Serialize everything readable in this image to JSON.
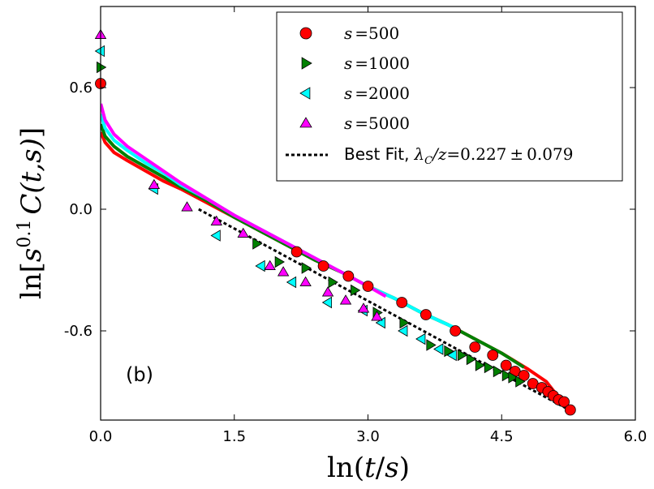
{
  "chart_data": {
    "type": "scatter",
    "xlabel": "ln(t/s)",
    "ylabel": "ln[s^0.1 C(t,s)]",
    "xlim": [
      0.0,
      6.0
    ],
    "ylim": [
      -1.04,
      1.0
    ],
    "xticks": [
      "0.0",
      "1.5",
      "3.0",
      "4.5",
      "6.0"
    ],
    "xtick_values": [
      0.0,
      1.5,
      3.0,
      4.5,
      6.0
    ],
    "yticks": [
      "0.6",
      "0.0",
      "-0.6"
    ],
    "ytick_values": [
      0.6,
      0.0,
      -0.6
    ],
    "panel_label": "(b)",
    "legend_location": "top-right",
    "series": [
      {
        "name": "s =500",
        "marker": "circle",
        "color": "#ff0000",
        "curve": [
          [
            0.002,
            0.38
          ],
          [
            0.05,
            0.33
          ],
          [
            0.15,
            0.28
          ],
          [
            0.3,
            0.24
          ],
          [
            0.5,
            0.19
          ],
          [
            0.7,
            0.14
          ],
          [
            0.9,
            0.1
          ],
          [
            1.2,
            0.03
          ],
          [
            1.5,
            -0.04
          ],
          [
            1.8,
            -0.11
          ],
          [
            2.1,
            -0.18
          ],
          [
            2.4,
            -0.25
          ],
          [
            2.7,
            -0.31
          ],
          [
            3.0,
            -0.38
          ],
          [
            3.3,
            -0.44
          ],
          [
            3.6,
            -0.51
          ],
          [
            3.9,
            -0.57
          ],
          [
            4.2,
            -0.64
          ],
          [
            4.5,
            -0.71
          ],
          [
            4.8,
            -0.79
          ],
          [
            5.0,
            -0.85
          ],
          [
            5.25,
            -0.99
          ]
        ],
        "points": [
          [
            0.0,
            0.62
          ],
          [
            2.2,
            -0.21
          ],
          [
            2.5,
            -0.28
          ],
          [
            2.78,
            -0.33
          ],
          [
            3.0,
            -0.38
          ],
          [
            3.38,
            -0.46
          ],
          [
            3.65,
            -0.52
          ],
          [
            3.98,
            -0.6
          ],
          [
            4.2,
            -0.68
          ],
          [
            4.4,
            -0.72
          ],
          [
            4.55,
            -0.77
          ],
          [
            4.65,
            -0.8
          ],
          [
            4.75,
            -0.82
          ],
          [
            4.85,
            -0.86
          ],
          [
            4.95,
            -0.88
          ],
          [
            5.02,
            -0.9
          ],
          [
            5.08,
            -0.92
          ],
          [
            5.14,
            -0.94
          ],
          [
            5.2,
            -0.95
          ],
          [
            5.27,
            -0.99
          ]
        ]
      },
      {
        "name": "s =1000",
        "marker": "triangle-right",
        "color": "#008000",
        "curve": [
          [
            0.002,
            0.42
          ],
          [
            0.05,
            0.36
          ],
          [
            0.15,
            0.31
          ],
          [
            0.3,
            0.26
          ],
          [
            0.5,
            0.21
          ],
          [
            0.7,
            0.16
          ],
          [
            0.9,
            0.11
          ],
          [
            1.2,
            0.04
          ],
          [
            1.5,
            -0.04
          ],
          [
            1.8,
            -0.11
          ],
          [
            2.1,
            -0.18
          ],
          [
            2.4,
            -0.25
          ],
          [
            2.7,
            -0.31
          ],
          [
            3.0,
            -0.38
          ],
          [
            3.3,
            -0.44
          ],
          [
            3.6,
            -0.51
          ],
          [
            3.9,
            -0.57
          ],
          [
            4.2,
            -0.64
          ],
          [
            4.5,
            -0.71
          ],
          [
            4.75,
            -0.78
          ]
        ],
        "points": [
          [
            0.0,
            0.7
          ],
          [
            1.75,
            -0.17
          ],
          [
            2.0,
            -0.26
          ],
          [
            2.3,
            -0.29
          ],
          [
            2.6,
            -0.36
          ],
          [
            2.85,
            -0.4
          ],
          [
            3.1,
            -0.51
          ],
          [
            3.4,
            -0.56
          ],
          [
            3.7,
            -0.67
          ],
          [
            3.9,
            -0.7
          ],
          [
            4.05,
            -0.72
          ],
          [
            4.15,
            -0.74
          ],
          [
            4.25,
            -0.77
          ],
          [
            4.35,
            -0.78
          ],
          [
            4.45,
            -0.8
          ],
          [
            4.55,
            -0.82
          ],
          [
            4.62,
            -0.83
          ],
          [
            4.7,
            -0.85
          ]
        ]
      },
      {
        "name": "s =2000",
        "marker": "triangle-left",
        "color": "#00ffff",
        "curve": [
          [
            0.002,
            0.47
          ],
          [
            0.05,
            0.4
          ],
          [
            0.15,
            0.34
          ],
          [
            0.3,
            0.29
          ],
          [
            0.5,
            0.23
          ],
          [
            0.7,
            0.18
          ],
          [
            0.9,
            0.12
          ],
          [
            1.2,
            0.05
          ],
          [
            1.5,
            -0.03
          ],
          [
            1.8,
            -0.1
          ],
          [
            2.1,
            -0.17
          ],
          [
            2.4,
            -0.24
          ],
          [
            2.7,
            -0.31
          ],
          [
            3.0,
            -0.38
          ],
          [
            3.3,
            -0.44
          ],
          [
            3.6,
            -0.51
          ],
          [
            3.95,
            -0.58
          ]
        ],
        "points": [
          [
            0.0,
            0.78
          ],
          [
            0.6,
            0.1
          ],
          [
            1.3,
            -0.13
          ],
          [
            1.8,
            -0.28
          ],
          [
            2.15,
            -0.36
          ],
          [
            2.55,
            -0.46
          ],
          [
            2.95,
            -0.5
          ],
          [
            3.15,
            -0.56
          ],
          [
            3.4,
            -0.6
          ],
          [
            3.6,
            -0.64
          ],
          [
            3.8,
            -0.69
          ],
          [
            3.95,
            -0.72
          ]
        ]
      },
      {
        "name": "s =5000",
        "marker": "triangle-up",
        "color": "#ff00ff",
        "curve": [
          [
            0.002,
            0.52
          ],
          [
            0.05,
            0.44
          ],
          [
            0.15,
            0.37
          ],
          [
            0.3,
            0.31
          ],
          [
            0.5,
            0.25
          ],
          [
            0.7,
            0.19
          ],
          [
            0.9,
            0.13
          ],
          [
            1.2,
            0.05
          ],
          [
            1.5,
            -0.03
          ],
          [
            1.8,
            -0.1
          ],
          [
            2.1,
            -0.17
          ],
          [
            2.4,
            -0.24
          ],
          [
            2.7,
            -0.31
          ],
          [
            3.0,
            -0.38
          ],
          [
            3.2,
            -0.43
          ]
        ],
        "points": [
          [
            0.0,
            0.86
          ],
          [
            0.6,
            0.12
          ],
          [
            0.97,
            0.01
          ],
          [
            1.3,
            -0.06
          ],
          [
            1.6,
            -0.12
          ],
          [
            1.9,
            -0.28
          ],
          [
            2.05,
            -0.31
          ],
          [
            2.3,
            -0.36
          ],
          [
            2.55,
            -0.41
          ],
          [
            2.75,
            -0.45
          ],
          [
            2.95,
            -0.49
          ],
          [
            3.1,
            -0.53
          ]
        ]
      }
    ],
    "fit": {
      "name": "Best Fit, λ_C/z = 0.227 ± 0.079",
      "style": "dotted",
      "color": "#000000",
      "x": [
        1.1,
        5.3
      ],
      "y": [
        0.0,
        -1.0
      ]
    }
  },
  "legend": {
    "entries": [
      {
        "s_label": "s",
        "eq": "=",
        "value": "500"
      },
      {
        "s_label": "s",
        "eq": "=",
        "value": "1000"
      },
      {
        "s_label": "s",
        "eq": "=",
        "value": "2000"
      },
      {
        "s_label": "s",
        "eq": "=",
        "value": "5000"
      }
    ],
    "fit_prefix": "Best Fit,",
    "fit_lambda": "λ",
    "fit_sub": "C",
    "fit_rest": "/z",
    "fit_eq": "=",
    "fit_value": "0.227",
    "fit_pm": "±",
    "fit_err": "0.079"
  },
  "axes_text": {
    "x_ln": "ln(",
    "x_var": "t",
    "x_slash": "/",
    "x_var2": "s",
    "x_close": ")",
    "y_ln": "ln[",
    "y_s": "s",
    "y_exp": "0.1",
    "y_C": "C",
    "y_args": "(t,s)",
    "y_close": "]"
  }
}
